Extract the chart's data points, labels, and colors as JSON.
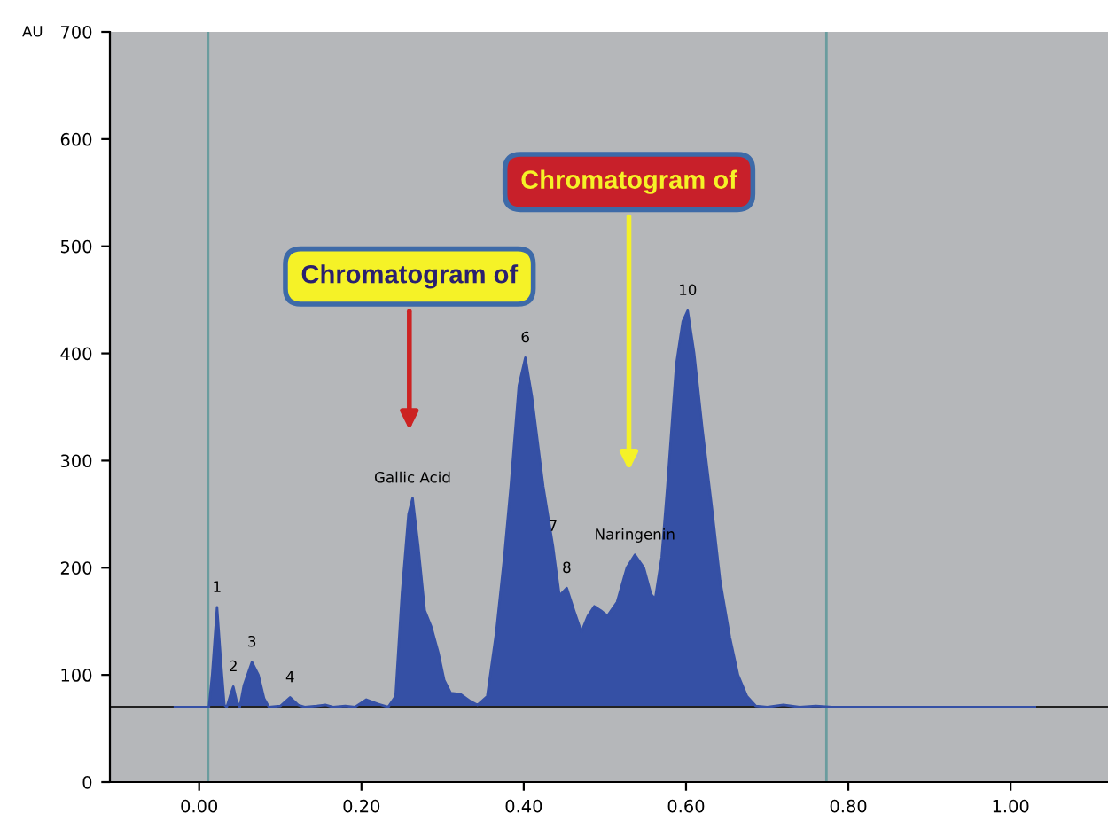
{
  "chart_data": {
    "type": "area",
    "ylabel": "AU",
    "xlim": [
      -0.11,
      1.12
    ],
    "ylim": [
      0,
      700
    ],
    "xticks": [
      {
        "value": 0,
        "label": "0.00"
      },
      {
        "value": 0.2,
        "label": "0.20"
      },
      {
        "value": 0.4,
        "label": "0.40"
      },
      {
        "value": 0.6,
        "label": "0.60"
      },
      {
        "value": 0.8,
        "label": "0.80"
      },
      {
        "value": 1.0,
        "label": "1.00"
      }
    ],
    "yticks": [
      0,
      100,
      200,
      300,
      400,
      500,
      600,
      700
    ],
    "grid": false,
    "series": [
      {
        "color": "#3550a5",
        "x": [
          -0.03,
          0.012,
          0.016,
          0.022,
          0.027,
          0.031,
          0.034,
          0.038,
          0.042,
          0.046,
          0.05,
          0.055,
          0.065,
          0.073,
          0.08,
          0.086,
          0.1,
          0.112,
          0.122,
          0.13,
          0.145,
          0.156,
          0.165,
          0.18,
          0.192,
          0.206,
          0.22,
          0.233,
          0.242,
          0.25,
          0.258,
          0.263,
          0.27,
          0.278,
          0.286,
          0.295,
          0.302,
          0.31,
          0.322,
          0.335,
          0.343,
          0.355,
          0.366,
          0.376,
          0.384,
          0.394,
          0.402,
          0.41,
          0.424,
          0.436,
          0.444,
          0.453,
          0.462,
          0.471,
          0.479,
          0.487,
          0.495,
          0.503,
          0.515,
          0.527,
          0.537,
          0.548,
          0.557,
          0.562,
          0.57,
          0.577,
          0.588,
          0.596,
          0.602,
          0.61,
          0.62,
          0.632,
          0.642,
          0.654,
          0.664,
          0.675,
          0.686,
          0.7,
          0.72,
          0.74,
          0.76,
          0.78,
          1.03
        ],
        "values": [
          70,
          70,
          100,
          163,
          110,
          72,
          70,
          80,
          89,
          76,
          70,
          90,
          112,
          100,
          78,
          70,
          71,
          79,
          72,
          70,
          71,
          72,
          70,
          71,
          70,
          77,
          73,
          70,
          80,
          177,
          250,
          265,
          220,
          160,
          145,
          120,
          95,
          83,
          82,
          75,
          72,
          80,
          139,
          210,
          276,
          370,
          396,
          360,
          276,
          220,
          174,
          181,
          160,
          140,
          155,
          164,
          160,
          155,
          168,
          200,
          212,
          200,
          175,
          171,
          210,
          276,
          390,
          430,
          440,
          400,
          330,
          255,
          188,
          135,
          100,
          80,
          71,
          70,
          72,
          70,
          71,
          70,
          70
        ]
      }
    ],
    "ref_lines": [
      {
        "axis": "y",
        "value": 70,
        "color": "#222222"
      },
      {
        "axis": "x",
        "value": 0.011,
        "color": "#6a9c9e"
      },
      {
        "axis": "x",
        "value": 0.773,
        "color": "#6a9c9e"
      }
    ],
    "annotations": [
      {
        "text": "1",
        "x": 0.022,
        "y": 163
      },
      {
        "text": "2",
        "x": 0.042,
        "y": 89
      },
      {
        "text": "3",
        "x": 0.065,
        "y": 112
      },
      {
        "text": "4",
        "x": 0.112,
        "y": 79
      },
      {
        "text": "Gallic Acid",
        "x": 0.263,
        "y": 265
      },
      {
        "text": "6",
        "x": 0.402,
        "y": 396
      },
      {
        "text": "7",
        "x": 0.436,
        "y": 220
      },
      {
        "text": "8",
        "x": 0.453,
        "y": 181
      },
      {
        "text": "Naringenin",
        "x": 0.537,
        "y": 212
      },
      {
        "text": "10",
        "x": 0.602,
        "y": 440
      },
      "Chromatogram of",
      "Chromatogram of"
    ]
  }
}
